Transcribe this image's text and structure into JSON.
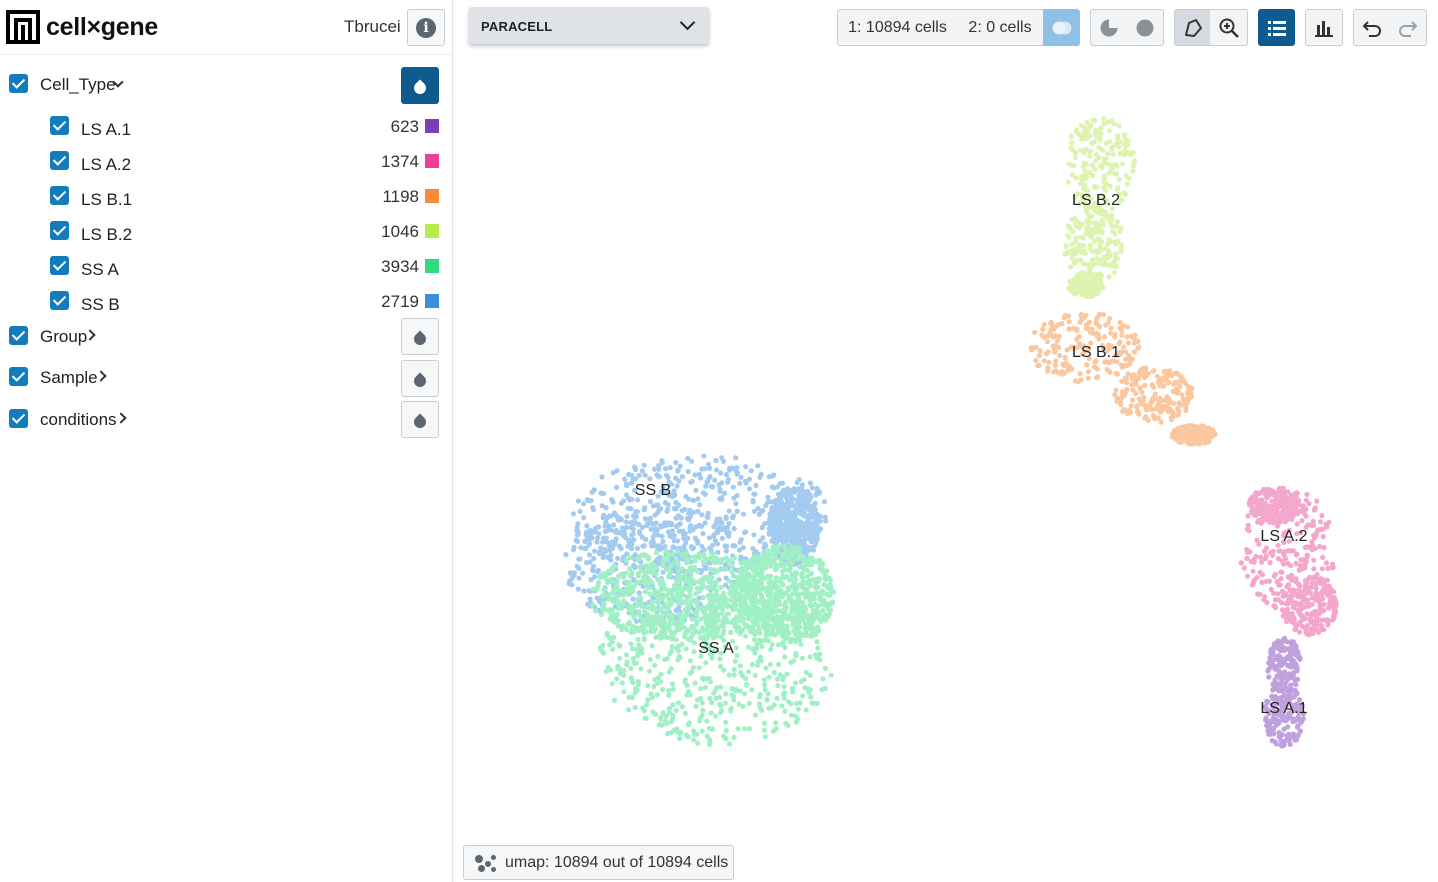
{
  "brand": {
    "name": "cell×gene"
  },
  "dataset": {
    "name": "Tbrucei"
  },
  "categories": [
    {
      "label": "Cell_Type",
      "expanded": true,
      "values": [
        {
          "label": "LS A.1",
          "count": "623",
          "color": "#7b3fb3"
        },
        {
          "label": "LS A.2",
          "count": "1374",
          "color": "#ee3f92"
        },
        {
          "label": "LS B.1",
          "count": "1198",
          "color": "#f98b38"
        },
        {
          "label": "LS B.2",
          "count": "1046",
          "color": "#b5eb4f"
        },
        {
          "label": "SS A",
          "count": "3934",
          "color": "#2edb7f"
        },
        {
          "label": "SS B",
          "count": "2719",
          "color": "#3b8fdb"
        }
      ]
    },
    {
      "label": "Group",
      "expanded": false
    },
    {
      "label": "Sample",
      "expanded": false
    },
    {
      "label": "conditions",
      "expanded": false
    }
  ],
  "toolbar": {
    "embedding": "PARACELL",
    "selection1": "1: 10894 cells",
    "selection2": "2: 0 cells",
    "icons": [
      "venn-icon",
      "pie-icon",
      "circle-icon",
      "lasso-icon",
      "zoom-icon",
      "list-icon",
      "histogram-icon",
      "undo-icon",
      "redo-icon"
    ]
  },
  "plot": {
    "clusters": [
      {
        "label": "LS B.2",
        "color": "#dcf4b0"
      },
      {
        "label": "LS B.1",
        "color": "#fbc79f"
      },
      {
        "label": "SS B",
        "color": "#a3cbf0"
      },
      {
        "label": "SS A",
        "color": "#a1f0c5"
      },
      {
        "label": "LS A.2",
        "color": "#f4a6cc"
      },
      {
        "label": "LS A.1",
        "color": "#c0a0dd"
      }
    ]
  },
  "footer": {
    "status": "umap: 10894 out of 10894 cells"
  }
}
